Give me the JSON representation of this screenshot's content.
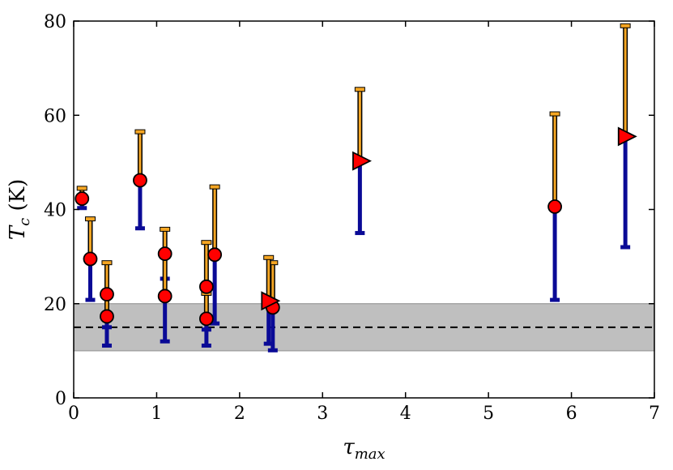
{
  "chart_data": {
    "type": "scatter",
    "xlabel": {
      "main": "τ",
      "sub": "max"
    },
    "ylabel": {
      "main": "T",
      "sub": "c",
      "unit": " (K)"
    },
    "xlim": [
      0,
      7
    ],
    "ylim": [
      0,
      80
    ],
    "xticks": [
      "0",
      "1",
      "2",
      "3",
      "4",
      "5",
      "6",
      "7"
    ],
    "yticks": [
      "0",
      "20",
      "40",
      "60",
      "80"
    ],
    "xtick_values": [
      0,
      1,
      2,
      3,
      4,
      5,
      6,
      7
    ],
    "ytick_values": [
      0,
      20,
      40,
      60,
      80
    ],
    "band": {
      "y_low": 10,
      "y_high": 20,
      "y_line": 15,
      "color": "#bfbfbf",
      "line_color": "#000000"
    },
    "colors": {
      "upper_bar": "#f5a623",
      "lower_bar": "#0a0a96",
      "marker_fill": "#ff0000",
      "marker_edge": "#000000"
    },
    "series": [
      {
        "marker": "circle",
        "points": [
          {
            "x": 0.1,
            "y": 42.3,
            "low": 40.3,
            "high": 44.5
          },
          {
            "x": 0.2,
            "y": 29.5,
            "low": 20.8,
            "high": 38.0
          },
          {
            "x": 0.4,
            "y": 22.0,
            "low": 15.0,
            "high": 28.7
          },
          {
            "x": 0.4,
            "y": 17.3,
            "low": 11.1,
            "high": 22.5
          },
          {
            "x": 0.8,
            "y": 46.2,
            "low": 36.0,
            "high": 56.5
          },
          {
            "x": 1.1,
            "y": 30.6,
            "low": 25.3,
            "high": 35.8
          },
          {
            "x": 1.1,
            "y": 21.6,
            "low": 12.0,
            "high": 30.0
          },
          {
            "x": 1.6,
            "y": 23.6,
            "low": 14.5,
            "high": 33.0
          },
          {
            "x": 1.6,
            "y": 16.8,
            "low": 11.1,
            "high": 22.2
          },
          {
            "x": 1.7,
            "y": 30.4,
            "low": 15.8,
            "high": 44.8
          },
          {
            "x": 2.4,
            "y": 19.2,
            "low": 10.1,
            "high": 28.7
          },
          {
            "x": 5.8,
            "y": 40.6,
            "low": 20.8,
            "high": 60.3
          }
        ]
      },
      {
        "marker": "triangle-right",
        "points": [
          {
            "x": 2.35,
            "y": 20.6,
            "low": 11.5,
            "high": 29.8
          },
          {
            "x": 3.45,
            "y": 50.3,
            "low": 35.0,
            "high": 65.5
          },
          {
            "x": 6.65,
            "y": 55.5,
            "low": 32.0,
            "high": 79.0
          }
        ]
      }
    ]
  }
}
